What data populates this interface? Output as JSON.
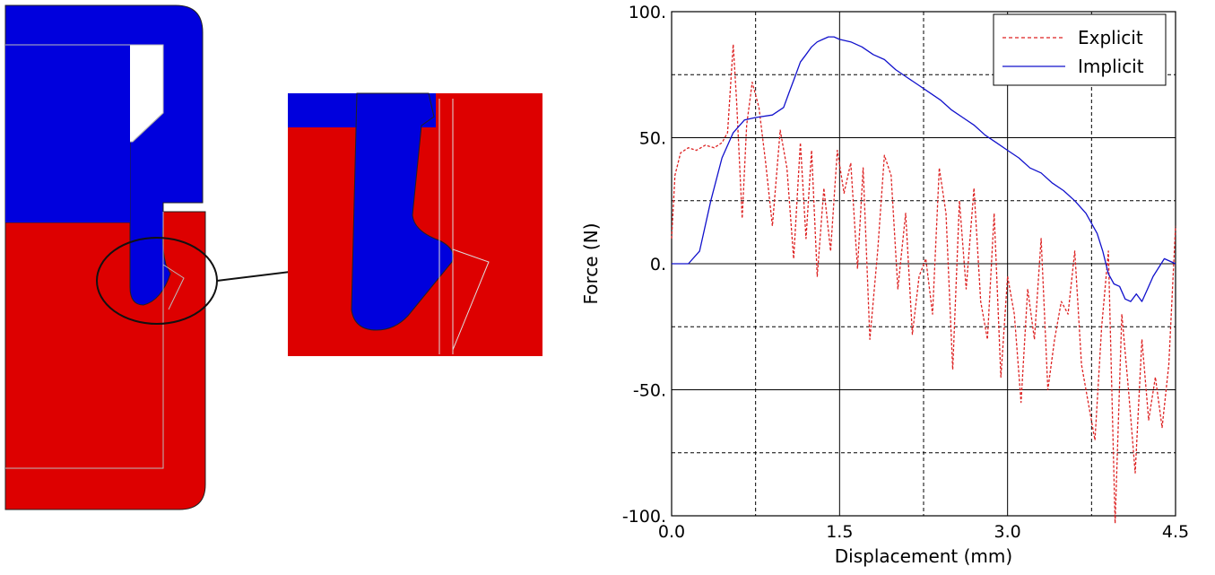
{
  "figure": {
    "colors": {
      "red": "#dd0000",
      "blue": "#0000dd",
      "outline": "#222222"
    }
  },
  "chart_data": {
    "type": "line",
    "xlabel": "Displacement (mm)",
    "ylabel": "Force (N)",
    "xlim": [
      0,
      4.5
    ],
    "ylim": [
      -100,
      100
    ],
    "x_ticks": [
      0,
      1.5,
      3.0,
      4.5
    ],
    "x_tick_labels": [
      "0.0",
      "1.5",
      "3.0",
      "4.5"
    ],
    "x_minor_gridlines": [
      0.75,
      2.25,
      3.75
    ],
    "y_ticks": [
      100,
      50,
      0,
      -50,
      -100
    ],
    "y_tick_labels": [
      "100.",
      "50.",
      "0.",
      "-50.",
      "-100."
    ],
    "y_minor_gridlines": [
      75,
      25,
      -25,
      -75
    ],
    "grid": true,
    "legend_position": "top-right",
    "series": [
      {
        "name": "Explicit",
        "color": "#dd2222",
        "style": "dashed",
        "x": [
          0.0,
          0.03,
          0.08,
          0.15,
          0.22,
          0.3,
          0.38,
          0.45,
          0.5,
          0.55,
          0.58,
          0.63,
          0.67,
          0.72,
          0.78,
          0.84,
          0.9,
          0.97,
          1.03,
          1.09,
          1.15,
          1.2,
          1.25,
          1.3,
          1.36,
          1.42,
          1.48,
          1.54,
          1.6,
          1.66,
          1.71,
          1.77,
          1.84,
          1.9,
          1.96,
          2.02,
          2.09,
          2.15,
          2.21,
          2.27,
          2.33,
          2.39,
          2.45,
          2.51,
          2.57,
          2.63,
          2.7,
          2.76,
          2.82,
          2.88,
          2.94,
          3.0,
          3.06,
          3.12,
          3.18,
          3.24,
          3.3,
          3.36,
          3.42,
          3.48,
          3.54,
          3.6,
          3.66,
          3.72,
          3.78,
          3.84,
          3.9,
          3.96,
          4.02,
          4.08,
          4.14,
          4.2,
          4.26,
          4.32,
          4.38,
          4.44,
          4.5
        ],
        "y": [
          10,
          35,
          44,
          46,
          45,
          47,
          46,
          48,
          52,
          87,
          65,
          18,
          55,
          72,
          62,
          40,
          15,
          53,
          38,
          2,
          48,
          10,
          45,
          -5,
          30,
          5,
          45,
          28,
          40,
          -2,
          38,
          -30,
          5,
          43,
          35,
          -10,
          20,
          -28,
          -5,
          2,
          -20,
          38,
          20,
          -42,
          25,
          -10,
          30,
          -15,
          -30,
          20,
          -45,
          -5,
          -20,
          -55,
          -10,
          -30,
          10,
          -50,
          -30,
          -15,
          -20,
          5,
          -40,
          -55,
          -70,
          -25,
          5,
          -103,
          -20,
          -50,
          -83,
          -30,
          -62,
          -45,
          -65,
          -40,
          15
        ]
      },
      {
        "name": "Implicit",
        "color": "#1111cc",
        "style": "solid",
        "x": [
          0.0,
          0.08,
          0.15,
          0.25,
          0.35,
          0.45,
          0.55,
          0.65,
          0.75,
          0.9,
          1.0,
          1.05,
          1.1,
          1.15,
          1.2,
          1.25,
          1.3,
          1.35,
          1.4,
          1.45,
          1.5,
          1.6,
          1.7,
          1.8,
          1.9,
          2.0,
          2.1,
          2.2,
          2.3,
          2.4,
          2.5,
          2.6,
          2.7,
          2.8,
          2.9,
          3.0,
          3.1,
          3.2,
          3.3,
          3.4,
          3.5,
          3.6,
          3.7,
          3.8,
          3.85,
          3.9,
          3.95,
          4.0,
          4.05,
          4.1,
          4.15,
          4.2,
          4.25,
          4.3,
          4.4,
          4.5
        ],
        "y": [
          0,
          0,
          0,
          5,
          25,
          42,
          52,
          57,
          58,
          59,
          62,
          68,
          74,
          80,
          83,
          86,
          88,
          89,
          90,
          90,
          89,
          88,
          86,
          83,
          81,
          77,
          74,
          71,
          68,
          65,
          61,
          58,
          55,
          51,
          48,
          45,
          42,
          38,
          36,
          32,
          29,
          25,
          20,
          12,
          5,
          -4,
          -8,
          -9,
          -14,
          -15,
          -12,
          -15,
          -10,
          -5,
          2,
          0
        ]
      }
    ]
  }
}
